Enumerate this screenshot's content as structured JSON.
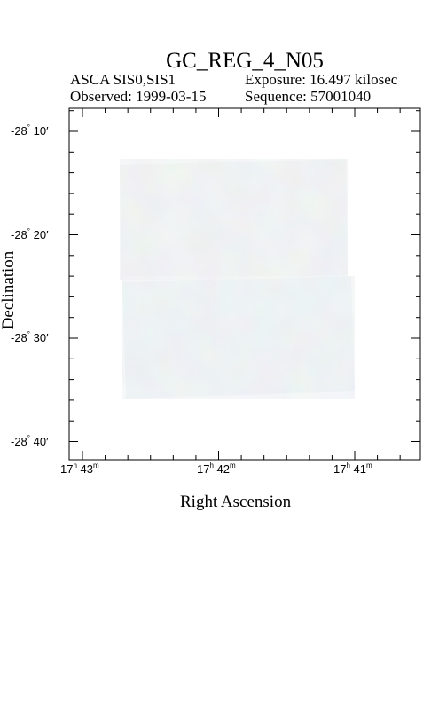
{
  "title": "GC_REG_4_N05",
  "header": {
    "instrument": "ASCA SIS0,SIS1",
    "exposure": "Exposure: 16.497 kilosec",
    "observed": "Observed: 1999-03-15",
    "sequence": "Sequence: 57001040"
  },
  "axes": {
    "xlabel": "Right Ascension",
    "ylabel": "Declination",
    "x_ticks": [
      {
        "h": "17",
        "m": "43"
      },
      {
        "h": "17",
        "m": "42"
      },
      {
        "h": "17",
        "m": "41"
      }
    ],
    "y_ticks": [
      {
        "deg": "-28",
        "min": "10′"
      },
      {
        "deg": "-28",
        "min": "20′"
      },
      {
        "deg": "-28",
        "min": "30′"
      },
      {
        "deg": "-28",
        "min": "40′"
      }
    ]
  },
  "colors": {
    "image_base": "#dfe6e6",
    "frame": "#000000"
  }
}
